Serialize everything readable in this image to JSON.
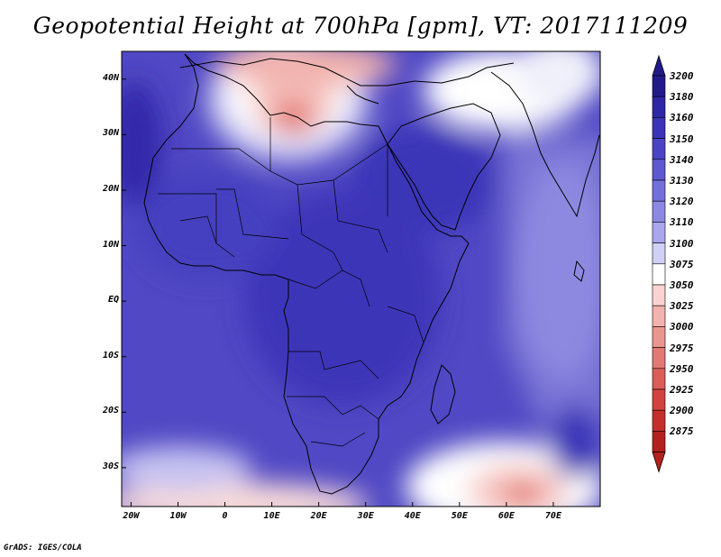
{
  "map": {
    "title": "Geopotential Height at 700hPa [gpm], VT: 2017111209",
    "credit": "GrADS: IGES/COLA",
    "lat_labels": [
      "40N",
      "30N",
      "20N",
      "10N",
      "EQ",
      "10S",
      "20S",
      "30S"
    ],
    "lon_labels": [
      "20W",
      "10W",
      "0",
      "10E",
      "20E",
      "30E",
      "40E",
      "50E",
      "60E",
      "70E"
    ],
    "lon_range": [
      -22,
      80
    ],
    "lat_range": [
      -37,
      45
    ]
  },
  "colorbar": {
    "levels": [
      "3200",
      "3180",
      "3160",
      "3150",
      "3140",
      "3130",
      "3120",
      "3110",
      "3100",
      "3075",
      "3050",
      "3025",
      "3000",
      "2975",
      "2950",
      "2925",
      "2900",
      "2875"
    ],
    "colors": [
      "#231a8a",
      "#2d27a6",
      "#3b34b8",
      "#4a44c4",
      "#5d59d0",
      "#7470da",
      "#8c88e2",
      "#aaa6ec",
      "#d0cff5",
      "#ffffff",
      "#fad2cf",
      "#f2b2ad",
      "#e99690",
      "#e27974",
      "#da5d58",
      "#d2433f",
      "#c52f2b",
      "#b3211e"
    ],
    "top_arrow_color": "#231a8a",
    "bottom_arrow_color": "#b3211e"
  }
}
